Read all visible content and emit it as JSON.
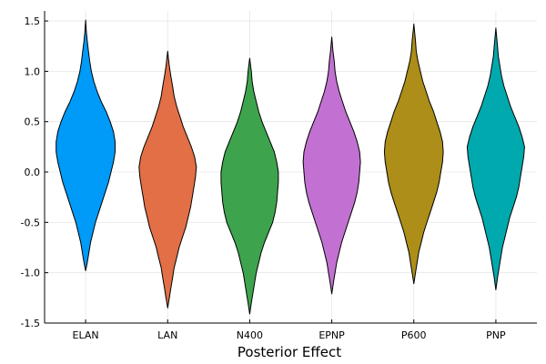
{
  "chart_data": {
    "type": "violin",
    "title": "",
    "xlabel": "Posterior Effect",
    "ylabel": "",
    "ylim": [
      -1.5,
      1.6
    ],
    "yticks": [
      -1.5,
      -1.0,
      -0.5,
      0.0,
      0.5,
      1.0,
      1.5
    ],
    "ytick_labels": [
      "-1.5",
      "-1.0",
      "-0.5",
      "0.0",
      "0.5",
      "1.0",
      "1.5"
    ],
    "grid": true,
    "legend": "none",
    "categories": [
      "ELAN",
      "LAN",
      "N400",
      "EPNP",
      "P600",
      "PNP"
    ],
    "series": [
      {
        "category": "ELAN",
        "color": "#009af9",
        "min": -0.98,
        "max": 1.51,
        "profile": [
          [
            -0.98,
            0.0
          ],
          [
            -0.9,
            0.02
          ],
          [
            -0.8,
            0.04
          ],
          [
            -0.7,
            0.06
          ],
          [
            -0.6,
            0.09
          ],
          [
            -0.5,
            0.12
          ],
          [
            -0.4,
            0.16
          ],
          [
            -0.3,
            0.2
          ],
          [
            -0.2,
            0.24
          ],
          [
            -0.1,
            0.28
          ],
          [
            0.0,
            0.31
          ],
          [
            0.1,
            0.34
          ],
          [
            0.2,
            0.36
          ],
          [
            0.3,
            0.36
          ],
          [
            0.4,
            0.34
          ],
          [
            0.5,
            0.3
          ],
          [
            0.6,
            0.25
          ],
          [
            0.7,
            0.19
          ],
          [
            0.8,
            0.14
          ],
          [
            0.9,
            0.1
          ],
          [
            1.0,
            0.07
          ],
          [
            1.1,
            0.05
          ],
          [
            1.2,
            0.035
          ],
          [
            1.3,
            0.02
          ],
          [
            1.38,
            0.01
          ],
          [
            1.51,
            0.0
          ]
        ]
      },
      {
        "category": "LAN",
        "color": "#e26f46",
        "min": -1.35,
        "max": 1.2,
        "profile": [
          [
            -1.35,
            0.0
          ],
          [
            -1.25,
            0.02
          ],
          [
            -1.15,
            0.04
          ],
          [
            -1.05,
            0.06
          ],
          [
            -0.95,
            0.08
          ],
          [
            -0.85,
            0.11
          ],
          [
            -0.75,
            0.14
          ],
          [
            -0.65,
            0.18
          ],
          [
            -0.55,
            0.22
          ],
          [
            -0.45,
            0.25
          ],
          [
            -0.35,
            0.28
          ],
          [
            -0.25,
            0.3
          ],
          [
            -0.15,
            0.32
          ],
          [
            -0.05,
            0.34
          ],
          [
            0.05,
            0.35
          ],
          [
            0.15,
            0.33
          ],
          [
            0.25,
            0.29
          ],
          [
            0.35,
            0.24
          ],
          [
            0.45,
            0.19
          ],
          [
            0.55,
            0.15
          ],
          [
            0.65,
            0.11
          ],
          [
            0.75,
            0.08
          ],
          [
            0.85,
            0.06
          ],
          [
            0.95,
            0.04
          ],
          [
            1.05,
            0.02
          ],
          [
            1.12,
            0.01
          ],
          [
            1.2,
            0.0
          ]
        ]
      },
      {
        "category": "N400",
        "color": "#3da44d",
        "min": -1.41,
        "max": 1.13,
        "profile": [
          [
            -1.41,
            0.0
          ],
          [
            -1.3,
            0.02
          ],
          [
            -1.2,
            0.04
          ],
          [
            -1.1,
            0.06
          ],
          [
            -1.0,
            0.08
          ],
          [
            -0.9,
            0.11
          ],
          [
            -0.8,
            0.14
          ],
          [
            -0.7,
            0.18
          ],
          [
            -0.6,
            0.23
          ],
          [
            -0.5,
            0.28
          ],
          [
            -0.4,
            0.31
          ],
          [
            -0.3,
            0.33
          ],
          [
            -0.2,
            0.34
          ],
          [
            -0.1,
            0.35
          ],
          [
            0.0,
            0.35
          ],
          [
            0.1,
            0.33
          ],
          [
            0.2,
            0.3
          ],
          [
            0.3,
            0.25
          ],
          [
            0.4,
            0.2
          ],
          [
            0.5,
            0.15
          ],
          [
            0.6,
            0.11
          ],
          [
            0.7,
            0.08
          ],
          [
            0.8,
            0.05
          ],
          [
            0.9,
            0.03
          ],
          [
            1.0,
            0.02
          ],
          [
            1.13,
            0.0
          ]
        ]
      },
      {
        "category": "EPNP",
        "color": "#c271d2",
        "min": -1.21,
        "max": 1.34,
        "profile": [
          [
            -1.21,
            0.0
          ],
          [
            -1.1,
            0.02
          ],
          [
            -1.0,
            0.04
          ],
          [
            -0.9,
            0.06
          ],
          [
            -0.8,
            0.09
          ],
          [
            -0.7,
            0.12
          ],
          [
            -0.6,
            0.16
          ],
          [
            -0.5,
            0.2
          ],
          [
            -0.4,
            0.24
          ],
          [
            -0.3,
            0.28
          ],
          [
            -0.2,
            0.31
          ],
          [
            -0.1,
            0.33
          ],
          [
            0.0,
            0.34
          ],
          [
            0.1,
            0.35
          ],
          [
            0.2,
            0.34
          ],
          [
            0.3,
            0.31
          ],
          [
            0.4,
            0.27
          ],
          [
            0.5,
            0.22
          ],
          [
            0.6,
            0.17
          ],
          [
            0.7,
            0.13
          ],
          [
            0.8,
            0.09
          ],
          [
            0.9,
            0.06
          ],
          [
            1.0,
            0.04
          ],
          [
            1.1,
            0.03
          ],
          [
            1.2,
            0.015
          ],
          [
            1.34,
            0.0
          ]
        ]
      },
      {
        "category": "P600",
        "color": "#ac8e18",
        "min": -1.11,
        "max": 1.47,
        "profile": [
          [
            -1.11,
            0.0
          ],
          [
            -1.0,
            0.02
          ],
          [
            -0.9,
            0.04
          ],
          [
            -0.8,
            0.06
          ],
          [
            -0.7,
            0.09
          ],
          [
            -0.6,
            0.12
          ],
          [
            -0.5,
            0.16
          ],
          [
            -0.4,
            0.2
          ],
          [
            -0.3,
            0.24
          ],
          [
            -0.2,
            0.28
          ],
          [
            -0.1,
            0.31
          ],
          [
            0.0,
            0.33
          ],
          [
            0.1,
            0.35
          ],
          [
            0.2,
            0.36
          ],
          [
            0.3,
            0.35
          ],
          [
            0.4,
            0.32
          ],
          [
            0.5,
            0.28
          ],
          [
            0.6,
            0.24
          ],
          [
            0.7,
            0.19
          ],
          [
            0.8,
            0.15
          ],
          [
            0.9,
            0.11
          ],
          [
            1.0,
            0.08
          ],
          [
            1.1,
            0.05
          ],
          [
            1.2,
            0.03
          ],
          [
            1.3,
            0.02
          ],
          [
            1.47,
            0.0
          ]
        ]
      },
      {
        "category": "PNP",
        "color": "#00a9ad",
        "min": -1.17,
        "max": 1.43,
        "profile": [
          [
            -1.17,
            0.0
          ],
          [
            -1.05,
            0.02
          ],
          [
            -0.95,
            0.04
          ],
          [
            -0.85,
            0.06
          ],
          [
            -0.75,
            0.08
          ],
          [
            -0.65,
            0.11
          ],
          [
            -0.55,
            0.14
          ],
          [
            -0.45,
            0.17
          ],
          [
            -0.35,
            0.21
          ],
          [
            -0.25,
            0.25
          ],
          [
            -0.15,
            0.28
          ],
          [
            -0.05,
            0.3
          ],
          [
            0.05,
            0.32
          ],
          [
            0.15,
            0.34
          ],
          [
            0.25,
            0.35
          ],
          [
            0.35,
            0.32
          ],
          [
            0.45,
            0.28
          ],
          [
            0.55,
            0.23
          ],
          [
            0.65,
            0.18
          ],
          [
            0.75,
            0.14
          ],
          [
            0.85,
            0.1
          ],
          [
            0.95,
            0.07
          ],
          [
            1.05,
            0.05
          ],
          [
            1.15,
            0.03
          ],
          [
            1.25,
            0.02
          ],
          [
            1.43,
            0.0
          ]
        ]
      }
    ]
  }
}
